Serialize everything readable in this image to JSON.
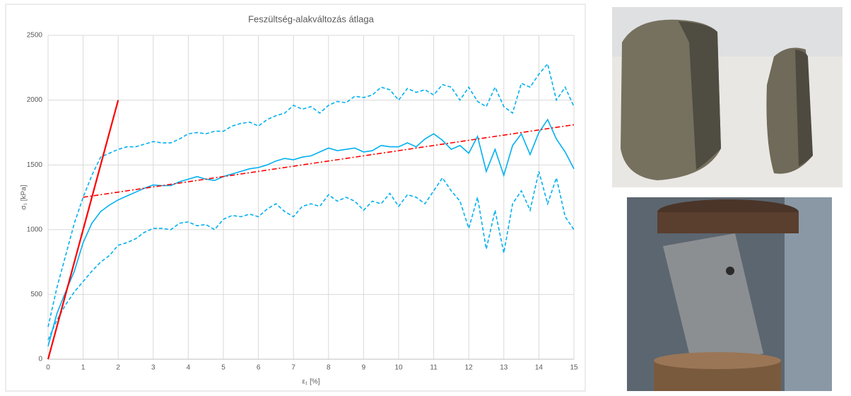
{
  "chart_data": {
    "type": "line",
    "title": "Feszültség-alakváltozás átlaga",
    "x_label": "ε₁ [%]",
    "y_label": "σ₁ [kPa]",
    "xlim": [
      0,
      15
    ],
    "ylim": [
      0,
      2500
    ],
    "xticks": [
      0,
      1,
      2,
      3,
      4,
      5,
      6,
      7,
      8,
      9,
      10,
      11,
      12,
      13,
      14,
      15
    ],
    "yticks": [
      0,
      500,
      1000,
      1500,
      2000,
      2500
    ],
    "grid": true,
    "x": [
      0,
      0.25,
      0.5,
      0.75,
      1,
      1.25,
      1.5,
      1.75,
      2,
      2.25,
      2.5,
      2.75,
      3,
      3.25,
      3.5,
      3.75,
      4,
      4.25,
      4.5,
      4.75,
      5,
      5.25,
      5.5,
      5.75,
      6,
      6.25,
      6.5,
      6.75,
      7,
      7.25,
      7.5,
      7.75,
      8,
      8.25,
      8.5,
      8.75,
      9,
      9.25,
      9.5,
      9.75,
      10,
      10.25,
      10.5,
      10.75,
      11,
      11.25,
      11.5,
      11.75,
      12,
      12.25,
      12.5,
      12.75,
      13,
      13.25,
      13.5,
      13.75,
      14,
      14.25,
      14.5,
      14.75,
      15
    ],
    "series": [
      {
        "color": "#00b0f0",
        "dash": "solid",
        "values": [
          100,
          350,
          520,
          680,
          900,
          1050,
          1140,
          1190,
          1230,
          1260,
          1290,
          1320,
          1345,
          1340,
          1340,
          1370,
          1390,
          1410,
          1390,
          1380,
          1410,
          1430,
          1450,
          1470,
          1480,
          1500,
          1530,
          1550,
          1540,
          1560,
          1570,
          1600,
          1630,
          1610,
          1620,
          1630,
          1600,
          1610,
          1650,
          1640,
          1640,
          1670,
          1640,
          1700,
          1740,
          1690,
          1620,
          1650,
          1590,
          1720,
          1450,
          1620,
          1420,
          1650,
          1740,
          1580,
          1750,
          1850,
          1700,
          1600,
          1470
        ]
      },
      {
        "color": "#00b0f0",
        "dash": "dashed",
        "values": [
          250,
          550,
          800,
          1050,
          1250,
          1420,
          1560,
          1590,
          1620,
          1640,
          1640,
          1660,
          1680,
          1670,
          1670,
          1700,
          1740,
          1750,
          1740,
          1760,
          1760,
          1800,
          1820,
          1830,
          1800,
          1850,
          1880,
          1900,
          1960,
          1930,
          1950,
          1900,
          1960,
          1990,
          1980,
          2030,
          2020,
          2040,
          2100,
          2080,
          2000,
          2090,
          2060,
          2080,
          2040,
          2120,
          2100,
          2000,
          2100,
          1990,
          1950,
          2100,
          1950,
          1900,
          2130,
          2100,
          2200,
          2280,
          2000,
          2100,
          1950
        ]
      },
      {
        "color": "#00b0f0",
        "dash": "dashed",
        "values": [
          150,
          300,
          420,
          520,
          600,
          680,
          750,
          800,
          880,
          900,
          930,
          980,
          1010,
          1010,
          1000,
          1050,
          1060,
          1030,
          1040,
          1000,
          1080,
          1110,
          1100,
          1120,
          1100,
          1160,
          1200,
          1140,
          1100,
          1180,
          1200,
          1180,
          1270,
          1220,
          1250,
          1220,
          1150,
          1220,
          1200,
          1280,
          1180,
          1270,
          1250,
          1200,
          1300,
          1400,
          1300,
          1220,
          1010,
          1250,
          850,
          1150,
          820,
          1200,
          1300,
          1150,
          1450,
          1200,
          1400,
          1100,
          1000
        ]
      },
      {
        "color": "#ff0000",
        "dash": "solid",
        "x": [
          0,
          2
        ],
        "values": [
          0,
          2000
        ]
      },
      {
        "color": "#ff0000",
        "dash": "dash-dot",
        "x": [
          1,
          15
        ],
        "values": [
          1250,
          1810
        ]
      }
    ]
  }
}
